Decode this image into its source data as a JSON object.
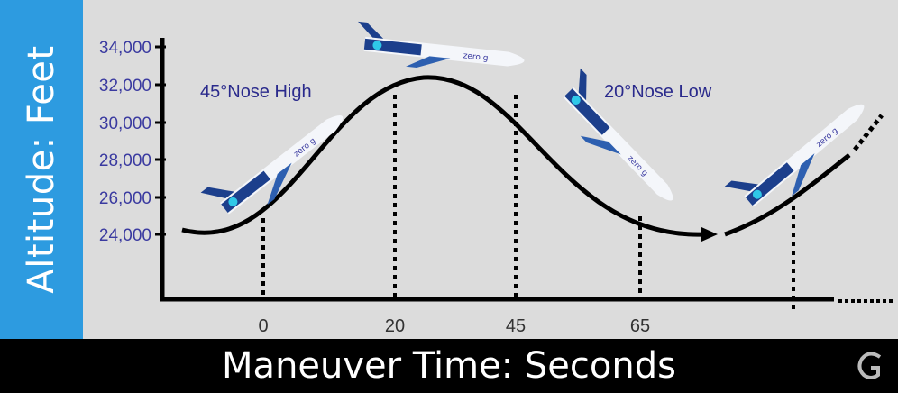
{
  "y_axis_label": "Altitude: Feet",
  "x_axis_label": "Maneuver Time: Seconds",
  "y_ticks": [
    "34,000",
    "32,000",
    "30,000",
    "28,000",
    "26,000",
    "24,000"
  ],
  "x_ticks": [
    "0",
    "20",
    "45",
    "65"
  ],
  "annotations": {
    "nose_high": "45°Nose High",
    "nose_low": "20°Nose Low"
  },
  "aircraft_livery_text": "zero g",
  "colors": {
    "side_band": "#2d9be0",
    "background": "#dcdcdc",
    "bottom_bar": "#000000",
    "annotation_text": "#2a2a8c",
    "tick_text": "#3a3aa0",
    "curve": "#000000"
  }
}
